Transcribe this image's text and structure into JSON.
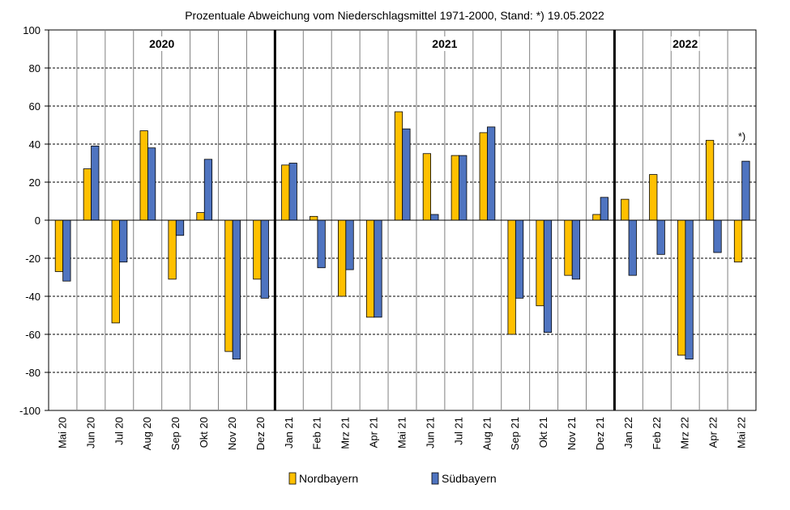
{
  "chart_data": {
    "type": "bar",
    "title": "Prozentuale Abweichung vom Niederschlagsmittel 1971-2000, Stand: *) 19.05.2022",
    "xlabel": "",
    "ylabel": "",
    "ylim": [
      -100,
      100
    ],
    "yticks": [
      100,
      80,
      60,
      40,
      20,
      0,
      -20,
      -40,
      -60,
      -80,
      -100
    ],
    "grid": true,
    "legend_position": "bottom",
    "categories": [
      "Mai 20",
      "Jun 20",
      "Jul 20",
      "Aug 20",
      "Sep 20",
      "Okt 20",
      "Nov 20",
      "Dez 20",
      "Jan 21",
      "Feb 21",
      "Mrz 21",
      "Apr 21",
      "Mai 21",
      "Jun 21",
      "Jul 21",
      "Aug 21",
      "Sep 21",
      "Okt 21",
      "Nov 21",
      "Dez 21",
      "Jan 22",
      "Feb 22",
      "Mrz 22",
      "Apr 22",
      "Mai 22"
    ],
    "series": [
      {
        "name": "Nordbayern",
        "color": "#ffc000",
        "values": [
          -27,
          27,
          -54,
          47,
          -31,
          4,
          -69,
          -31,
          29,
          2,
          -40,
          -51,
          57,
          35,
          34,
          46,
          -60,
          -45,
          -29,
          3,
          11,
          24,
          -71,
          42,
          -22
        ]
      },
      {
        "name": "Südbayern",
        "color": "#4f74c0",
        "values": [
          -32,
          39,
          -22,
          38,
          -8,
          32,
          -73,
          -41,
          30,
          -25,
          -26,
          -51,
          48,
          3,
          34,
          49,
          -41,
          -59,
          -31,
          12,
          -29,
          -18,
          -73,
          -17,
          31
        ]
      }
    ],
    "year_labels": [
      {
        "text": "2020",
        "from": 0,
        "to": 7
      },
      {
        "text": "2021",
        "from": 8,
        "to": 19
      },
      {
        "text": "2022",
        "from": 20,
        "to": 24
      }
    ],
    "annotation": {
      "text": "*)",
      "category": 24
    }
  }
}
